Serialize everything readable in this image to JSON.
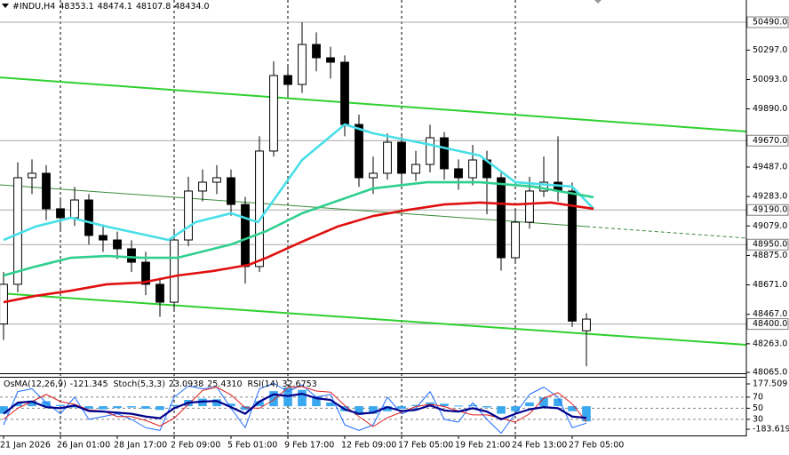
{
  "chart_data": [
    {
      "type": "candlestick",
      "title": "#INDU,H4",
      "ohlc": [
        48353.1,
        48474.1,
        48107.8,
        {
          "value": 48434,
          "label": "48434.0"
        }
      ],
      "categories": [
        "21 Jan 2026",
        null,
        null,
        null,
        "26 Jan 01:00",
        null,
        null,
        null,
        "28 Jan 17:00",
        null,
        null,
        null,
        "2 Feb 09:00",
        null,
        null,
        null,
        "5 Feb 01:00",
        null,
        null,
        null,
        "9 Feb 17:00",
        null,
        null,
        null,
        "12 Feb 09:00",
        null,
        null,
        null,
        "17 Feb 05:00",
        null,
        null,
        null,
        "19 Feb 21:00",
        null,
        null,
        null,
        "24 Feb 13:00",
        null,
        null,
        null,
        "27 Feb 05:00",
        null
      ],
      "open": [
        48400,
        48675,
        49413,
        49444,
        49198,
        49136,
        49259,
        49013,
        48982,
        48921,
        48828,
        48675,
        48551,
        48982,
        49321,
        49382,
        49413,
        49228,
        48798,
        49598,
        50121,
        50059,
        50336,
        50244,
        50213,
        49782,
        49413,
        49444,
        49659,
        49444,
        49505,
        49690,
        49475,
        49413,
        49536,
        49413,
        48859,
        49105,
        49321,
        49382,
        49321,
        48353.1
      ],
      "high": [
        48760,
        49520,
        49540,
        49500,
        49260,
        49350,
        49300,
        49090,
        49040,
        48980,
        48900,
        48720,
        49060,
        49420,
        49470,
        49500,
        49470,
        49280,
        49700,
        50220,
        50200,
        50490,
        50420,
        50320,
        50260,
        49850,
        49560,
        49720,
        49700,
        49600,
        49780,
        49730,
        49540,
        49640,
        49600,
        49450,
        49200,
        49420,
        49560,
        49700,
        49380,
        48474.1
      ],
      "low": [
        48290,
        48620,
        49300,
        49120,
        49050,
        49080,
        48950,
        48900,
        48850,
        48760,
        48600,
        48450,
        48500,
        48940,
        49250,
        49300,
        49150,
        48680,
        48760,
        49560,
        49980,
        50000,
        50150,
        50100,
        49700,
        49350,
        49300,
        49400,
        49380,
        49390,
        49450,
        49400,
        49330,
        49360,
        49160,
        48770,
        48820,
        49060,
        49280,
        49250,
        48380,
        48107.8
      ],
      "close": [
        48675,
        49413,
        49444,
        49198,
        49136,
        49259,
        49013,
        48982,
        48921,
        48828,
        48675,
        48551,
        48982,
        49321,
        49382,
        49413,
        49228,
        48798,
        49598,
        50121,
        50059,
        50336,
        50244,
        50213,
        49782,
        49413,
        49444,
        49659,
        49444,
        49505,
        49690,
        49475,
        49413,
        49536,
        49413,
        48859,
        49105,
        49321,
        49382,
        49321,
        48420,
        48434
      ],
      "bull_color": "#ffffff",
      "bear_color": "#000000",
      "wick_color": "#000000",
      "xlim": [
        -0.25,
        52.25
      ],
      "ylim": [
        48059,
        50644
      ],
      "grid": true,
      "yticks": [
        {
          "value": 50297,
          "label": "50297.0"
        },
        {
          "value": 50093,
          "label": "50093.0"
        },
        {
          "value": 49890,
          "label": "49890.0"
        },
        {
          "value": 49487,
          "label": "49487.0"
        },
        {
          "value": 49283,
          "label": "49283.0"
        },
        {
          "value": 49079,
          "label": "49079.0"
        },
        {
          "value": 48875,
          "label": "48875.0"
        },
        {
          "value": 48671,
          "label": "48671.0"
        },
        {
          "value": 48467,
          "label": "48467.0"
        },
        {
          "value": 48263,
          "label": "48263.0"
        },
        {
          "value": 48065,
          "label": "48065.0"
        }
      ],
      "levels": [
        {
          "value": 50490,
          "label": "50490.0"
        },
        {
          "value": 49670,
          "label": "49670.0"
        },
        {
          "value": 49190,
          "label": "49190.0"
        },
        {
          "value": 48950,
          "label": "48950.0"
        },
        {
          "value": 48400,
          "label": "48400.0"
        }
      ],
      "series": [
        {
          "color": "#48dfe8",
          "x": [
            0,
            2.25,
            4.75,
            7.25,
            11.6,
            13.5,
            16,
            17.9,
            21,
            24,
            26,
            29.75,
            33.5,
            36,
            40,
            41.5
          ],
          "values": [
            48982,
            49075,
            49136,
            49075,
            48982,
            49105,
            49167,
            49105,
            49536,
            49782,
            49721,
            49647,
            49567,
            49382,
            49352,
            49198
          ]
        },
        {
          "color": "#2fcf8f",
          "x": [
            0,
            2.25,
            4.75,
            7.25,
            9.75,
            12.25,
            16,
            18.5,
            21,
            26,
            29.75,
            33.5,
            37.25,
            41.5
          ],
          "values": [
            48736,
            48798,
            48859,
            48871,
            48859,
            48859,
            48951,
            49044,
            49167,
            49339,
            49382,
            49382,
            49352,
            49278
          ]
        },
        {
          "color": "#e01010",
          "x": [
            0,
            2.25,
            4.75,
            7.25,
            9.75,
            12.25,
            14.75,
            17.25,
            18.5,
            21,
            23.5,
            26,
            28.5,
            31,
            33.5,
            36,
            38.5,
            41.5
          ],
          "values": [
            48551,
            48595,
            48631,
            48675,
            48687,
            48736,
            48767,
            48810,
            48859,
            48970,
            49075,
            49148,
            49191,
            49228,
            49241,
            49228,
            49241,
            49198
          ]
        }
      ],
      "trend_lines": [
        {
          "color": "#2ed02e",
          "width": 2,
          "dashed": false,
          "x": [
            -0.25,
            52.25
          ],
          "values": [
            50108,
            49733
          ]
        },
        {
          "color": "#3a8a3a",
          "width": 1,
          "dashed": false,
          "x": [
            -0.25,
            41
          ],
          "values": [
            49364,
            49075
          ]
        },
        {
          "color": "#3a8a3a",
          "width": 1,
          "dashed": true,
          "x": [
            41,
            52.25
          ],
          "values": [
            49075,
            48995
          ]
        },
        {
          "color": "#2ed02e",
          "width": 2,
          "dashed": false,
          "x": [
            -0.25,
            52.25
          ],
          "values": [
            48613,
            48256
          ]
        }
      ]
    },
    {
      "type": "oscillator",
      "ylim": [
        -233,
        227
      ],
      "yticks": [
        177.509,
        -183.619
      ],
      "y2lim": [
        1,
        105
      ],
      "y2ticks": [
        70,
        50,
        30
      ],
      "series": [
        {
          "name": "OsMA(12,26,9)",
          "type": "bar",
          "color": "#3aa8ee",
          "current": -121.345,
          "values": [
            -60,
            20,
            45,
            40,
            10,
            -10,
            -20,
            -25,
            -15,
            -10,
            -20,
            -30,
            10,
            50,
            60,
            55,
            20,
            -30,
            40,
            120,
            150,
            130,
            80,
            30,
            -40,
            -70,
            -60,
            -40,
            -20,
            10,
            30,
            20,
            5,
            10,
            -10,
            -60,
            -40,
            30,
            70,
            60,
            -40,
            -121.345
          ]
        },
        {
          "name": "Stoch(5,3,3)",
          "type": "line",
          "axis": "y2",
          "color": "#1e6cff",
          "width": 1,
          "current": 23.0938,
          "values": [
            20,
            80,
            85,
            60,
            40,
            70,
            30,
            35,
            40,
            30,
            15,
            10,
            70,
            90,
            85,
            88,
            50,
            15,
            85,
            95,
            80,
            92,
            70,
            75,
            20,
            10,
            20,
            70,
            40,
            50,
            80,
            30,
            25,
            60,
            30,
            5,
            40,
            75,
            88,
            70,
            15,
            23.0938
          ]
        },
        {
          "type": "line",
          "axis": "y2",
          "color": "#e02020",
          "width": 1,
          "current": {
            "value": 25.431,
            "label": "25.4310"
          },
          "values": [
            30,
            50,
            62,
            75,
            62,
            57,
            47,
            45,
            35,
            35,
            28,
            18,
            32,
            57,
            82,
            88,
            74,
            51,
            50,
            65,
            87,
            89,
            81,
            79,
            55,
            35,
            17,
            33,
            43,
            53,
            57,
            53,
            45,
            38,
            38,
            32,
            25,
            40,
            68,
            78,
            58,
            25.431
          ]
        },
        {
          "name": "RSI(14)",
          "type": "line",
          "axis": "y2",
          "color": "#00008c",
          "width": 2.2,
          "current": 32.6753,
          "values": [
            40,
            60,
            62,
            52,
            50,
            55,
            45,
            44,
            42,
            40,
            35,
            32,
            50,
            60,
            62,
            63,
            52,
            40,
            62,
            75,
            72,
            76,
            68,
            65,
            48,
            40,
            42,
            52,
            45,
            47,
            55,
            46,
            44,
            50,
            44,
            30,
            40,
            48,
            52,
            50,
            35,
            32.6753
          ]
        }
      ]
    }
  ]
}
